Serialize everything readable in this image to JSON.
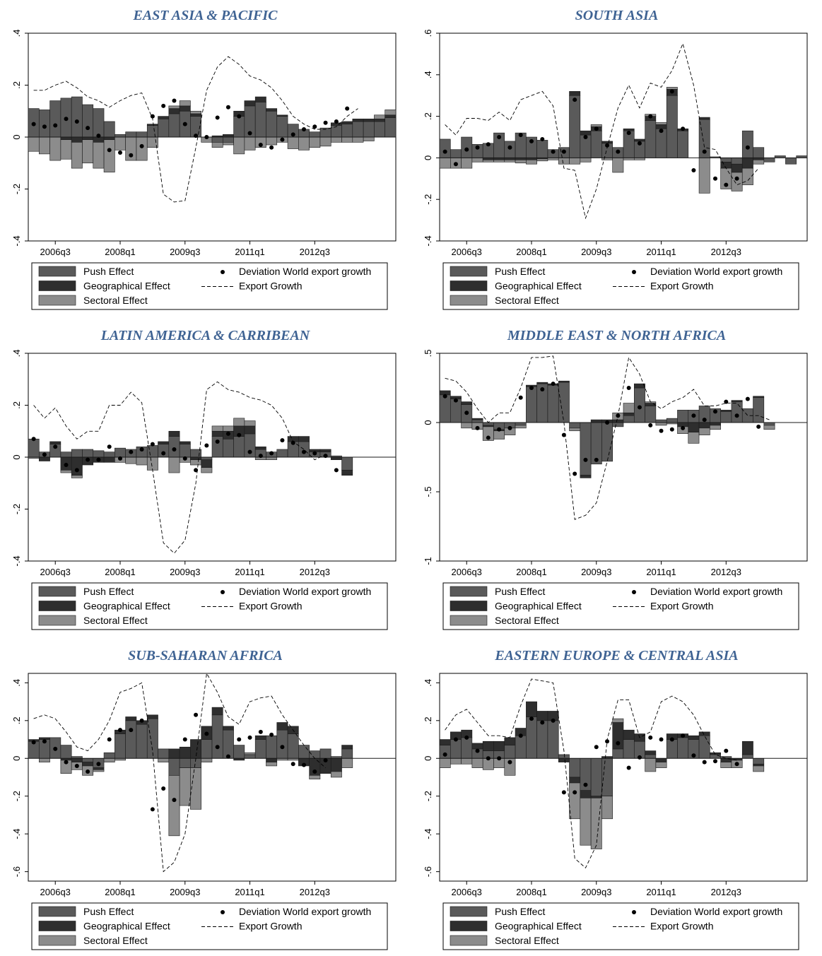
{
  "x_tick_labels": [
    "2006q3",
    "2008q1",
    "2009q3",
    "2011q1",
    "2012q3"
  ],
  "legend": {
    "push": "Push Effect",
    "geo": "Geographical Effect",
    "sect": "Sectoral Effect",
    "dev": "Deviation World export growth",
    "exp": "Export Growth"
  },
  "colors": {
    "push": "#5a5a5a",
    "geo": "#2e2e2e",
    "sect": "#8c8c8c",
    "title": "#3f6393"
  },
  "chart_data": [
    {
      "type": "bar",
      "title": "EAST ASIA & PACIFIC",
      "ylim": [
        -0.4,
        0.4
      ],
      "yticks": [
        ".4",
        ".2",
        "0",
        "-.2",
        "-.4"
      ],
      "ytick_values": [
        0.4,
        0.2,
        0,
        -0.2,
        -0.4
      ],
      "quarters_start": "2006q1",
      "push": [
        0.11,
        0.105,
        0.14,
        0.15,
        0.155,
        0.125,
        0.11,
        0.06,
        0.01,
        0.02,
        0.02,
        0.045,
        0.07,
        0.09,
        0.1,
        0.08,
        0,
        -0.02,
        -0.02,
        0.08,
        0.12,
        0.135,
        0.1,
        0.08,
        0.05,
        0.03,
        0.02,
        0.035,
        0.045,
        0.05,
        0.06,
        0.06,
        0.06,
        0.075
      ],
      "geo": [
        0,
        0,
        0,
        -0.01,
        -0.02,
        -0.01,
        -0.02,
        -0.01,
        0,
        0,
        0,
        0.005,
        0.01,
        0.02,
        0.02,
        0.01,
        0,
        0.005,
        0.01,
        0.02,
        0.02,
        0.02,
        0.01,
        0.005,
        0,
        0,
        0,
        0,
        0.01,
        0.01,
        0.01,
        0.01,
        0.01,
        0.01
      ],
      "sect": [
        -0.055,
        -0.065,
        -0.09,
        -0.075,
        -0.1,
        -0.09,
        -0.1,
        -0.125,
        -0.05,
        -0.09,
        -0.09,
        -0.04,
        0,
        0.01,
        0.02,
        0.01,
        -0.02,
        -0.02,
        -0.01,
        -0.065,
        -0.05,
        -0.04,
        -0.03,
        -0.02,
        -0.045,
        -0.05,
        -0.04,
        -0.035,
        -0.02,
        -0.02,
        -0.02,
        -0.015,
        0.015,
        0.02
      ],
      "deviation": [
        0.05,
        0.04,
        0.045,
        0.07,
        0.06,
        0.035,
        0.005,
        -0.05,
        -0.06,
        -0.07,
        -0.035,
        0.08,
        0.12,
        0.14,
        0.05,
        0.005,
        0,
        0.075,
        0.115,
        0.08,
        0.015,
        -0.03,
        -0.04,
        -0.01,
        0.01,
        0.03,
        0.04,
        0.055,
        0.06,
        0.11
      ],
      "export_growth": [
        0.18,
        0.18,
        0.2,
        0.215,
        0.19,
        0.155,
        0.14,
        0.115,
        0.14,
        0.16,
        0.17,
        0.07,
        -0.22,
        -0.25,
        -0.245,
        -0.04,
        0.18,
        0.27,
        0.31,
        0.28,
        0.235,
        0.22,
        0.19,
        0.14,
        0.08,
        0.05,
        0.03,
        0.03,
        0.04,
        0.08,
        0.11
      ]
    },
    {
      "type": "bar",
      "title": "SOUTH ASIA",
      "ylim": [
        -0.4,
        0.6
      ],
      "yticks": [
        ".6",
        ".4",
        ".2",
        "0",
        "-.2",
        "-.4"
      ],
      "ytick_values": [
        0.6,
        0.4,
        0.2,
        0,
        -0.2,
        -0.4
      ],
      "quarters_start": "2006q1",
      "push": [
        0.09,
        0.04,
        0.1,
        0.065,
        0.07,
        0.12,
        0.08,
        0.12,
        0.1,
        0.085,
        0.04,
        0.05,
        0.3,
        0.11,
        0.13,
        0.07,
        0.05,
        0.13,
        0.08,
        0.18,
        0.14,
        0.3,
        0.13,
        0,
        0.185,
        0.005,
        -0.02,
        -0.03,
        0.13,
        0.05,
        -0.02,
        0.01,
        -0.03,
        0.01
      ],
      "geo": [
        0,
        0,
        0,
        0,
        -0.01,
        -0.01,
        -0.01,
        -0.01,
        -0.01,
        -0.005,
        0,
        0,
        0.02,
        0.02,
        0.02,
        0.01,
        0,
        0.01,
        0.01,
        0.02,
        0.02,
        0.03,
        0.01,
        0,
        0.01,
        0,
        -0.03,
        -0.04,
        -0.05,
        -0.01,
        0,
        0,
        0,
        0
      ],
      "sect": [
        -0.05,
        -0.05,
        -0.05,
        -0.02,
        -0.01,
        -0.01,
        -0.01,
        -0.015,
        -0.02,
        -0.01,
        -0.01,
        -0.03,
        -0.03,
        -0.02,
        0.01,
        -0.01,
        -0.07,
        -0.01,
        -0.01,
        0.01,
        0.01,
        0.01,
        0,
        0,
        -0.17,
        0,
        -0.1,
        -0.09,
        -0.08,
        -0.02,
        0,
        0,
        0,
        0
      ],
      "deviation": [
        0.03,
        -0.03,
        0.04,
        0.05,
        0.065,
        0.1,
        0.05,
        0.11,
        0.08,
        0.09,
        0.03,
        0.03,
        0.28,
        0.1,
        0.14,
        0.06,
        0.03,
        0.12,
        0.07,
        0.2,
        0.13,
        0.32,
        0.14,
        -0.06,
        0.03,
        -0.1,
        -0.13,
        -0.1,
        0.05
      ],
      "export_growth": [
        0.16,
        0.11,
        0.19,
        0.19,
        0.18,
        0.22,
        0.18,
        0.28,
        0.3,
        0.32,
        0.25,
        -0.05,
        -0.06,
        -0.29,
        -0.15,
        0.05,
        0.24,
        0.35,
        0.24,
        0.36,
        0.34,
        0.42,
        0.55,
        0.35,
        0.05,
        0.04,
        -0.05,
        -0.13,
        -0.11,
        -0.05
      ]
    },
    {
      "type": "bar",
      "title": "LATIN AMERICA & CARRIBEAN",
      "ylim": [
        -0.4,
        0.4
      ],
      "yticks": [
        ".4",
        ".2",
        "0",
        "-.2",
        "-.4"
      ],
      "ytick_values": [
        0.4,
        0.2,
        0,
        -0.2,
        -0.4
      ],
      "quarters_start": "2006q1",
      "push": [
        0.07,
        0.02,
        0.05,
        0.02,
        0.03,
        0.03,
        0.025,
        0.02,
        0.035,
        0.03,
        0.04,
        0.045,
        0.05,
        0.08,
        0.05,
        0.03,
        -0.01,
        0.08,
        0.07,
        0.08,
        0.09,
        0.03,
        0.02,
        0.03,
        0.06,
        0.06,
        0.02,
        0.02,
        0.005,
        -0.05
      ],
      "geo": [
        0,
        -0.015,
        0.01,
        -0.05,
        -0.07,
        -0.03,
        -0.02,
        -0.02,
        0,
        0,
        0,
        0,
        0.01,
        0.02,
        0.01,
        -0.01,
        -0.03,
        0.02,
        0.03,
        0.04,
        0.03,
        0.01,
        0,
        0,
        0.02,
        0.02,
        0.01,
        0.01,
        -0.01,
        -0.02
      ],
      "sect": [
        -0.005,
        0,
        0,
        -0.01,
        -0.01,
        0,
        0,
        0,
        -0.02,
        -0.025,
        -0.03,
        -0.05,
        0,
        -0.06,
        -0.02,
        -0.02,
        -0.02,
        0.02,
        0.02,
        0.03,
        0.02,
        -0.01,
        -0.01,
        0,
        0,
        0,
        0,
        0,
        0,
        0
      ],
      "deviation": [
        0.07,
        0.01,
        0.04,
        -0.03,
        -0.05,
        -0.01,
        -0.01,
        0.04,
        -0.005,
        0.02,
        0.03,
        0.05,
        0.015,
        0.03,
        -0.005,
        -0.05,
        0.045,
        0.06,
        0.09,
        0.085,
        0.02,
        0.005,
        0.015,
        0.065,
        0.055,
        0.02,
        0.015,
        0.005,
        -0.05
      ],
      "export_growth": [
        0.2,
        0.15,
        0.19,
        0.12,
        0.07,
        0.1,
        0.1,
        0.2,
        0.2,
        0.25,
        0.21,
        -0.05,
        -0.33,
        -0.37,
        -0.32,
        -0.1,
        0.26,
        0.29,
        0.26,
        0.25,
        0.23,
        0.22,
        0.2,
        0.15,
        0.06,
        0.03,
        -0.01,
        0.01
      ]
    },
    {
      "type": "bar",
      "title": "MIDDLE EAST & NORTH AFRICA",
      "ylim": [
        -1,
        0.5
      ],
      "yticks": [
        ".5",
        "0",
        "-.5",
        "-1"
      ],
      "ytick_values": [
        0.5,
        0,
        -0.5,
        -1
      ],
      "quarters_start": "2006q1",
      "push": [
        0.2,
        0.17,
        0.13,
        0.02,
        -0.02,
        -0.05,
        -0.04,
        -0.02,
        0.26,
        0.28,
        0.27,
        0.29,
        -0.04,
        -0.38,
        -0.3,
        -0.28,
        -0.03,
        0.05,
        0.25,
        0.12,
        0.02,
        0.03,
        0.09,
        0.09,
        0.12,
        0.1,
        0.08,
        0.15,
        0.1,
        0.18,
        -0.02
      ],
      "geo": [
        0.03,
        0.02,
        0.02,
        0.01,
        -0.01,
        -0.01,
        0,
        0,
        0.01,
        0.01,
        0.01,
        0.01,
        0,
        -0.02,
        0.02,
        0.02,
        0.02,
        0.02,
        0.03,
        0.02,
        0,
        0,
        -0.03,
        -0.07,
        -0.04,
        -0.02,
        0.01,
        0.01,
        0,
        0.01,
        0
      ],
      "sect": [
        0,
        0,
        -0.04,
        -0.05,
        -0.1,
        -0.06,
        -0.05,
        -0.02,
        0,
        0,
        0,
        0,
        -0.02,
        0,
        0,
        0,
        0.05,
        0.07,
        0,
        0.01,
        -0.02,
        -0.01,
        -0.05,
        -0.08,
        -0.05,
        -0.03,
        0,
        0,
        0,
        0,
        -0.03
      ],
      "deviation": [
        0.19,
        0.16,
        0.07,
        -0.04,
        -0.11,
        -0.05,
        -0.04,
        0.18,
        0.25,
        0.24,
        0.28,
        -0.09,
        -0.37,
        -0.27,
        -0.27,
        0,
        0.05,
        0.25,
        0.11,
        -0.02,
        -0.06,
        -0.05,
        -0.04,
        0.05,
        0.02,
        0.08,
        0.15,
        0.05,
        0.17,
        -0.03
      ],
      "export_growth": [
        0.32,
        0.3,
        0.22,
        0.1,
        0,
        0.07,
        0.07,
        0.25,
        0.47,
        0.47,
        0.48,
        0,
        -0.7,
        -0.67,
        -0.58,
        -0.28,
        0.05,
        0.47,
        0.35,
        0.15,
        0.1,
        0.15,
        0.18,
        0.24,
        0.12,
        0.12,
        0.14,
        0.14,
        0.05,
        0.05,
        0.02
      ]
    },
    {
      "type": "bar",
      "title": "SUB-SAHARAN AFRICA",
      "ylim": [
        -0.65,
        0.45
      ],
      "yticks": [
        ".4",
        ".2",
        "0",
        "-.2",
        "-.4",
        "-.6"
      ],
      "ytick_values": [
        0.4,
        0.2,
        0,
        -0.2,
        -0.4,
        -0.6
      ],
      "quarters_start": "2006q1",
      "push": [
        0.09,
        0.1,
        0.11,
        0.07,
        0.01,
        -0.02,
        -0.05,
        0.03,
        0.13,
        0.2,
        0.18,
        0.21,
        0.05,
        -0.09,
        -0.05,
        -0.05,
        0.1,
        0.23,
        0.15,
        0.07,
        0.02,
        0.1,
        0.12,
        0.15,
        0.13,
        0.07,
        0.04,
        0.05,
        0.01,
        0.05
      ],
      "geo": [
        0.01,
        0.01,
        0,
        -0.01,
        -0.02,
        -0.02,
        -0.01,
        0,
        0.02,
        0.02,
        0.02,
        0.02,
        0,
        0.05,
        0.06,
        0.1,
        0.07,
        0.04,
        0.02,
        -0.01,
        0,
        0.02,
        -0.02,
        0.04,
        0.04,
        -0.04,
        -0.09,
        -0.08,
        -0.07,
        0.02
      ],
      "sect": [
        0,
        -0.02,
        0,
        -0.07,
        -0.04,
        -0.05,
        -0.01,
        -0.02,
        -0.01,
        0,
        0,
        0,
        -0.02,
        -0.32,
        -0.2,
        -0.22,
        -0.02,
        0,
        0,
        0,
        0.01,
        0,
        -0.02,
        -0.01,
        -0.01,
        0,
        -0.02,
        0,
        -0.03,
        -0.05
      ],
      "deviation": [
        0.085,
        0.09,
        0.05,
        -0.02,
        -0.04,
        -0.07,
        -0.03,
        0.1,
        0.15,
        0.15,
        0.2,
        -0.27,
        -0.16,
        -0.22,
        0.1,
        0.23,
        0.13,
        0.06,
        0.01,
        0.1,
        0.11,
        0.14,
        0.125,
        0.06,
        -0.03,
        -0.035,
        -0.07,
        -0.01
      ],
      "export_growth": [
        0.21,
        0.23,
        0.21,
        0.14,
        0.06,
        0.04,
        0.1,
        0.2,
        0.35,
        0.37,
        0.4,
        0.04,
        -0.6,
        -0.55,
        -0.4,
        0,
        0.45,
        0.35,
        0.22,
        0.18,
        0.3,
        0.32,
        0.33,
        0.23,
        0.15,
        0.07,
        0,
        -0.05
      ]
    },
    {
      "type": "bar",
      "title": "EASTERN EUROPE & CENTRAL ASIA",
      "ylim": [
        -0.65,
        0.45
      ],
      "yticks": [
        ".4",
        ".2",
        "0",
        "-.2",
        "-.4",
        "-.6"
      ],
      "ytick_values": [
        0.4,
        0.2,
        0,
        -0.2,
        -0.4,
        -0.6
      ],
      "quarters_start": "2006q1",
      "push": [
        0.07,
        0.1,
        0.11,
        0.05,
        0.04,
        0.04,
        0.07,
        0.12,
        0.22,
        0.2,
        0.2,
        0.02,
        -0.1,
        -0.17,
        -0.2,
        -0.2,
        0.05,
        0.1,
        0.09,
        0.02,
        0,
        0.1,
        0.11,
        0.1,
        0.12,
        0.02,
        0.01,
        0,
        0.02,
        -0.03
      ],
      "geo": [
        0.03,
        0.04,
        0.04,
        0.03,
        0.05,
        0.05,
        0.04,
        0.04,
        0.08,
        0.05,
        0.05,
        -0.02,
        -0.03,
        -0.04,
        -0.01,
        0.01,
        0.14,
        0.05,
        0.04,
        0.02,
        -0.02,
        0.03,
        0.02,
        0.02,
        0.02,
        0.01,
        -0.02,
        -0.01,
        0.07,
        -0.01
      ],
      "sect": [
        -0.05,
        -0.03,
        -0.03,
        -0.05,
        -0.06,
        -0.05,
        -0.09,
        0,
        0,
        0,
        0,
        0,
        -0.19,
        -0.25,
        -0.27,
        -0.12,
        0.02,
        0,
        0,
        -0.07,
        -0.03,
        0,
        0,
        0,
        0,
        0,
        -0.03,
        -0.04,
        0,
        -0.03
      ],
      "deviation": [
        0.02,
        0.1,
        0.11,
        0.04,
        0,
        0,
        -0.02,
        0.12,
        0.21,
        0.19,
        0.2,
        -0.18,
        -0.18,
        -0.14,
        0.06,
        0.09,
        0.08,
        -0.05,
        0.005,
        0.11,
        0.1,
        0.1,
        0.12,
        0.015,
        -0.02,
        -0.015,
        0.04,
        -0.03
      ],
      "export_growth": [
        0.15,
        0.23,
        0.26,
        0.19,
        0.12,
        0.12,
        0.11,
        0.28,
        0.42,
        0.41,
        0.4,
        0.04,
        -0.53,
        -0.58,
        -0.46,
        0.1,
        0.31,
        0.31,
        0.11,
        0.14,
        0.3,
        0.33,
        0.3,
        0.23,
        0.12,
        0.02,
        0,
        -0.01
      ]
    }
  ]
}
